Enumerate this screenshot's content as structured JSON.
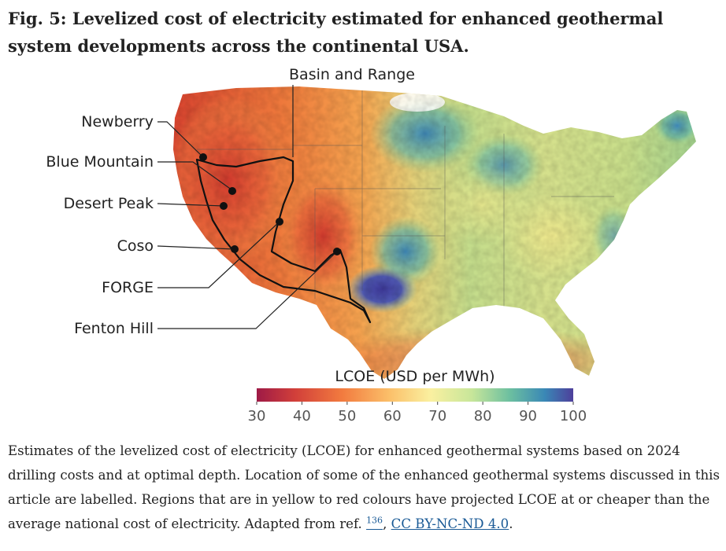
{
  "figure": {
    "title": "Fig. 5: Levelized cost of electricity estimated for enhanced geothermal system developments across the continental USA."
  },
  "map": {
    "region_label": "Basin and Range",
    "sites": [
      {
        "name": "Newberry"
      },
      {
        "name": "Blue Mountain"
      },
      {
        "name": "Desert Peak"
      },
      {
        "name": "Coso"
      },
      {
        "name": "FORGE"
      },
      {
        "name": "Fenton Hill"
      }
    ],
    "colors": {
      "low": "#c9332a",
      "mid_low": "#f08a3e",
      "mid": "#f9e48a",
      "mid_high": "#9fd08a",
      "high": "#3e8fb0",
      "max": "#4f3f9c"
    }
  },
  "legend": {
    "title": "LCOE (USD per MWh)",
    "ticks": [
      "30",
      "40",
      "50",
      "60",
      "70",
      "80",
      "90",
      "100"
    ],
    "range": [
      30,
      100
    ]
  },
  "caption": {
    "text": "Estimates of the levelized cost of electricity (LCOE) for enhanced geothermal systems based on 2024 drilling costs and at optimal depth. Location of some of the enhanced geothermal systems discussed in this article are labelled. Regions that are in yellow to red colours have projected LCOE at or cheaper than the average national cost of electricity. Adapted from ref. ",
    "ref_number": "136",
    "separator": ", ",
    "license": "CC BY-NC-ND 4.0",
    "end": "."
  }
}
